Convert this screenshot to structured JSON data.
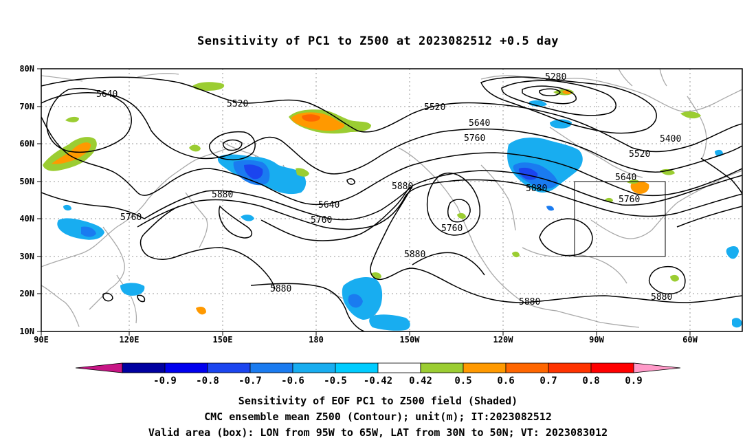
{
  "title": "Sensitivity of PC1 to Z500 at 2023082512 +0.5 day",
  "lat_ticks": [
    "80N",
    "70N",
    "60N",
    "50N",
    "40N",
    "30N",
    "20N",
    "10N"
  ],
  "lon_ticks": [
    "90E",
    "120E",
    "150E",
    "180",
    "150W",
    "120W",
    "90W",
    "60W"
  ],
  "contour_labels": [
    "5280",
    "5640",
    "5520",
    "5520",
    "5640",
    "5760",
    "5400",
    "5520",
    "5640",
    "5760",
    "5880",
    "5880",
    "5640",
    "5760",
    "5760",
    "5880",
    "5760",
    "5880",
    "5880",
    "5880",
    "5880"
  ],
  "valid_box": {
    "lon_from": "95W",
    "lon_to": "65W",
    "lat_from": "30N",
    "lat_to": "50N"
  },
  "colorbar": {
    "labels": [
      "-0.9",
      "-0.8",
      "-0.7",
      "-0.6",
      "-0.5",
      "-0.42",
      "0.42",
      "0.5",
      "0.6",
      "0.7",
      "0.8",
      "0.9"
    ],
    "colors": [
      "#0000a0",
      "#0000ee",
      "#1b45ef",
      "#1a7bf0",
      "#18adf0",
      "#00ccff",
      "#ffffff",
      "#9bcd32",
      "#ff9900",
      "#ff6600",
      "#ff3300",
      "#ff0000"
    ],
    "low_extend_color": "#c71585",
    "high_extend_color": "#ff9ac8"
  },
  "captions": [
    "Sensitivity of EOF PC1 to Z500 field (Shaded)",
    "CMC ensemble mean Z500 (Contour); unit(m); IT:2023082512",
    "Valid area (box): LON from 95W to 65W, LAT from 30N to 50N; VT: 2023083012"
  ]
}
